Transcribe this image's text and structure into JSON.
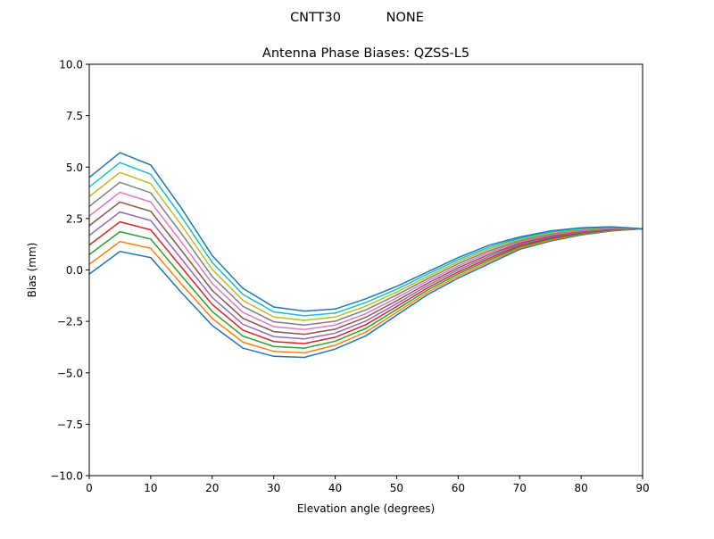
{
  "chart_data": {
    "type": "line",
    "suptitle": "CNTT30           NONE",
    "title": "Antenna Phase Biases: QZSS-L5",
    "xlabel": "Elevation angle (degrees)",
    "ylabel": "Bias (mm)",
    "xlim": [
      0,
      90
    ],
    "ylim": [
      -10,
      10
    ],
    "xticks": [
      0,
      10,
      20,
      30,
      40,
      50,
      60,
      70,
      80,
      90
    ],
    "xtick_labels": [
      "0",
      "10",
      "20",
      "30",
      "40",
      "50",
      "60",
      "70",
      "80",
      "90"
    ],
    "yticks": [
      -10,
      -7.5,
      -5,
      -2.5,
      0,
      2.5,
      5,
      7.5,
      10
    ],
    "ytick_labels": [
      "−10.0",
      "−7.5",
      "−5.0",
      "−2.5",
      "0.0",
      "2.5",
      "5.0",
      "7.5",
      "10.0"
    ],
    "grid": false,
    "colors": [
      "#1f77b4",
      "#ff7f0e",
      "#2ca02c",
      "#d62728",
      "#9467bd",
      "#8c564b",
      "#e377c2",
      "#7f7f7f",
      "#bcbd22",
      "#17becf"
    ],
    "x": [
      0,
      5,
      10,
      15,
      20,
      25,
      30,
      35,
      40,
      45,
      50,
      55,
      60,
      65,
      70,
      75,
      80,
      85,
      90
    ],
    "series": [
      {
        "values": [
          -0.2,
          0.9,
          0.6,
          -1.1,
          -2.7,
          -3.8,
          -4.2,
          -4.25,
          -3.85,
          -3.2,
          -2.2,
          -1.2,
          -0.4,
          0.3,
          1.0,
          1.4,
          1.7,
          1.9,
          2.0
        ]
      },
      {
        "values": [
          0.27,
          1.38,
          1.05,
          -0.69,
          -2.36,
          -3.51,
          -3.96,
          -4.03,
          -3.66,
          -3.02,
          -2.06,
          -1.09,
          -0.3,
          0.39,
          1.06,
          1.45,
          1.74,
          1.92,
          2.0
        ]
      },
      {
        "values": [
          0.74,
          1.86,
          1.5,
          -0.28,
          -2.02,
          -3.22,
          -3.72,
          -3.8,
          -3.46,
          -2.84,
          -1.92,
          -0.98,
          -0.2,
          0.48,
          1.12,
          1.5,
          1.77,
          1.94,
          2.0
        ]
      },
      {
        "values": [
          1.21,
          2.34,
          1.95,
          0.13,
          -1.68,
          -2.93,
          -3.48,
          -3.58,
          -3.27,
          -2.66,
          -1.78,
          -0.87,
          -0.1,
          0.57,
          1.18,
          1.55,
          1.81,
          1.96,
          2.0
        ]
      },
      {
        "values": [
          1.68,
          2.82,
          2.4,
          0.54,
          -1.34,
          -2.64,
          -3.24,
          -3.35,
          -3.07,
          -2.48,
          -1.64,
          -0.76,
          0.0,
          0.66,
          1.24,
          1.6,
          1.84,
          1.98,
          2.0
        ]
      },
      {
        "values": [
          2.15,
          3.3,
          2.85,
          0.95,
          -1.0,
          -2.35,
          -3.0,
          -3.13,
          -2.88,
          -2.3,
          -1.5,
          -0.65,
          0.1,
          0.75,
          1.3,
          1.65,
          1.88,
          2.0,
          2.0
        ]
      },
      {
        "values": [
          2.62,
          3.78,
          3.3,
          1.36,
          -0.66,
          -2.06,
          -2.76,
          -2.9,
          -2.68,
          -2.12,
          -1.36,
          -0.54,
          0.2,
          0.84,
          1.36,
          1.7,
          1.91,
          2.02,
          2.0
        ]
      },
      {
        "values": [
          3.09,
          4.26,
          3.75,
          1.77,
          -0.32,
          -1.77,
          -2.52,
          -2.68,
          -2.49,
          -1.94,
          -1.22,
          -0.43,
          0.3,
          0.93,
          1.42,
          1.75,
          1.95,
          2.04,
          2.0
        ]
      },
      {
        "values": [
          3.56,
          4.74,
          4.2,
          2.18,
          0.02,
          -1.48,
          -2.28,
          -2.45,
          -2.29,
          -1.76,
          -1.08,
          -0.32,
          0.4,
          1.02,
          1.48,
          1.8,
          1.98,
          2.06,
          2.0
        ]
      },
      {
        "values": [
          4.03,
          5.22,
          4.65,
          2.59,
          0.36,
          -1.19,
          -2.04,
          -2.23,
          -2.1,
          -1.58,
          -0.94,
          -0.21,
          0.5,
          1.11,
          1.54,
          1.85,
          2.02,
          2.08,
          2.0
        ]
      },
      {
        "values": [
          4.5,
          5.7,
          5.1,
          3.0,
          0.7,
          -0.9,
          -1.8,
          -2.0,
          -1.9,
          -1.4,
          -0.8,
          -0.1,
          0.6,
          1.2,
          1.6,
          1.9,
          2.05,
          2.1,
          2.0
        ]
      }
    ]
  }
}
